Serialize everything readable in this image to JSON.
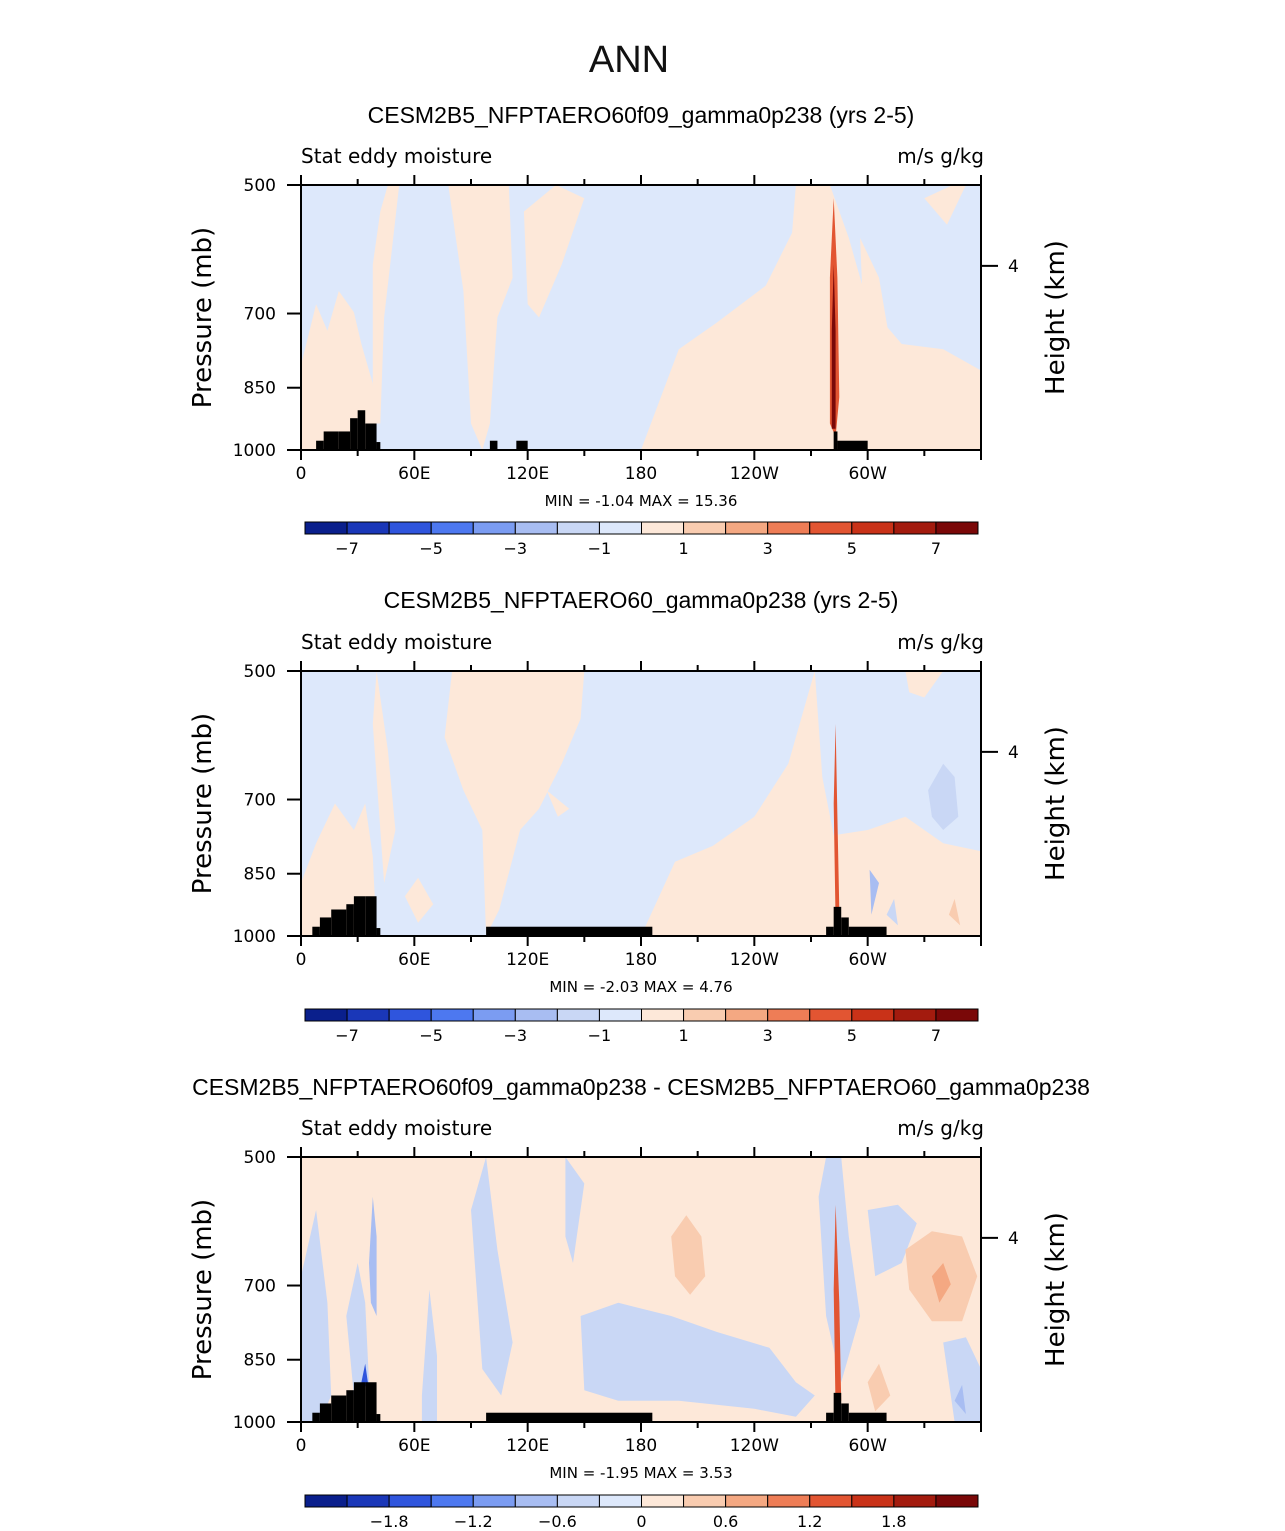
{
  "page_title": "ANN",
  "palette": {
    "colors": [
      "#0a1f8c",
      "#1a37b8",
      "#2f55dd",
      "#4d78f0",
      "#7b9cf2",
      "#a8bdf2",
      "#c9d7f5",
      "#dde8fb",
      "#fde8d9",
      "#f9ccb0",
      "#f4a882",
      "#ee7d56",
      "#e25532",
      "#c93218",
      "#a31b0e",
      "#7a0808"
    ],
    "land": "#000000"
  },
  "chart_data": [
    {
      "type": "heatmap",
      "title": "CESM2B5_NFPTAERO60f09_gamma0p238 (yrs 2-5)",
      "subtitle_left": "Stat eddy moisture",
      "subtitle_right": "m/s g/kg",
      "ylabel": "Pressure (mb)",
      "ylabel_right": "Height (km)",
      "yticks": [
        "500",
        "700",
        "850",
        "1000"
      ],
      "yticks_right": [
        "4"
      ],
      "xticks": [
        "0",
        "60E",
        "120E",
        "180",
        "120W",
        "60W"
      ],
      "stats": {
        "min_label": "MIN =",
        "min": "-1.04",
        "max_label": "MAX =",
        "max": "15.36"
      },
      "colorbar_labels": [
        "-7",
        "-5",
        "-3",
        "-1",
        "1",
        "3",
        "5",
        "7"
      ],
      "levels": [
        -7,
        -6,
        -5,
        -4,
        -3,
        -2,
        -1,
        0,
        1,
        2,
        3,
        4,
        5,
        6,
        7
      ]
    },
    {
      "type": "heatmap",
      "title": "CESM2B5_NFPTAERO60_gamma0p238 (yrs 2-5)",
      "subtitle_left": "Stat eddy moisture",
      "subtitle_right": "m/s g/kg",
      "ylabel": "Pressure (mb)",
      "ylabel_right": "Height (km)",
      "yticks": [
        "500",
        "700",
        "850",
        "1000"
      ],
      "yticks_right": [
        "4"
      ],
      "xticks": [
        "0",
        "60E",
        "120E",
        "180",
        "120W",
        "60W"
      ],
      "stats": {
        "min_label": "MIN =",
        "min": "-2.03",
        "max_label": "MAX =",
        "max": "4.76"
      },
      "colorbar_labels": [
        "-7",
        "-5",
        "-3",
        "-1",
        "1",
        "3",
        "5",
        "7"
      ],
      "levels": [
        -7,
        -6,
        -5,
        -4,
        -3,
        -2,
        -1,
        0,
        1,
        2,
        3,
        4,
        5,
        6,
        7
      ]
    },
    {
      "type": "heatmap",
      "title": "CESM2B5_NFPTAERO60f09_gamma0p238 - CESM2B5_NFPTAERO60_gamma0p238",
      "subtitle_left": "Stat eddy moisture",
      "subtitle_right": "m/s g/kg",
      "ylabel": "Pressure (mb)",
      "ylabel_right": "Height (km)",
      "yticks": [
        "500",
        "700",
        "850",
        "1000"
      ],
      "yticks_right": [
        "4"
      ],
      "xticks": [
        "0",
        "60E",
        "120E",
        "180",
        "120W",
        "60W"
      ],
      "stats": {
        "min_label": "MIN =",
        "min": "-1.95",
        "max_label": "MAX =",
        "max": "3.53"
      },
      "colorbar_labels": [
        "-1.8",
        "-1.2",
        "-0.6",
        "0",
        "0.6",
        "1.2",
        "1.8"
      ],
      "levels": [
        -2.1,
        -1.8,
        -1.5,
        -1.2,
        -0.9,
        -0.6,
        -0.3,
        0,
        0.3,
        0.6,
        0.9,
        1.2,
        1.5,
        1.8,
        2.1
      ]
    }
  ]
}
